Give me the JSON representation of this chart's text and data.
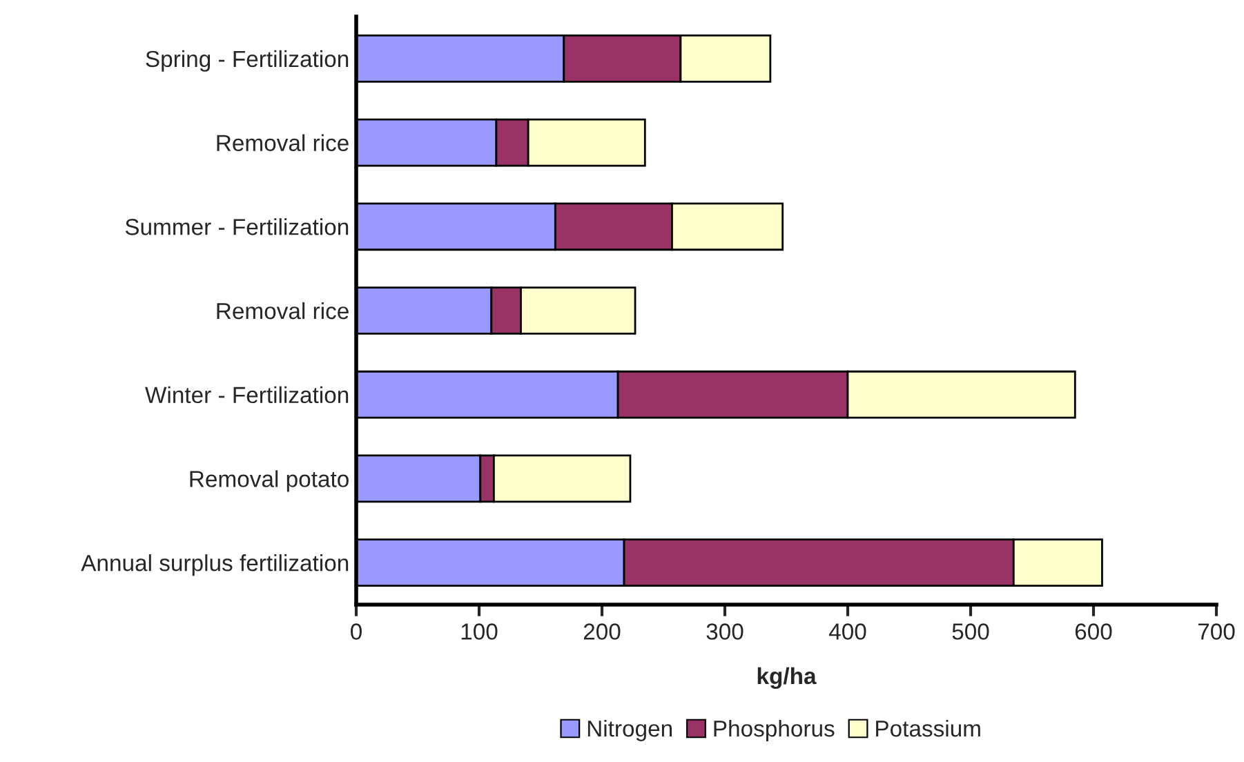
{
  "chart_data": {
    "type": "bar",
    "orientation": "horizontal",
    "stacked": true,
    "categories": [
      "Spring - Fertilization",
      "Removal rice",
      "Summer - Fertilization",
      "Removal rice",
      "Winter - Fertilization",
      "Removal potato",
      "Annual surplus fertilization"
    ],
    "series": [
      {
        "name": "Nitrogen",
        "color": "#9999ff",
        "values": [
          169,
          114,
          162,
          110,
          213,
          101,
          218
        ]
      },
      {
        "name": "Phosphorus",
        "color": "#993366",
        "values": [
          95,
          26,
          95,
          24,
          187,
          11,
          317
        ]
      },
      {
        "name": "Potassium",
        "color": "#ffffcc",
        "values": [
          73,
          95,
          90,
          93,
          185,
          111,
          72
        ]
      }
    ],
    "xlabel": "kg/ha",
    "xlim": [
      0,
      700
    ],
    "xticks": [
      0,
      100,
      200,
      300,
      400,
      500,
      600,
      700
    ],
    "grid": false,
    "legend": "bottom"
  }
}
